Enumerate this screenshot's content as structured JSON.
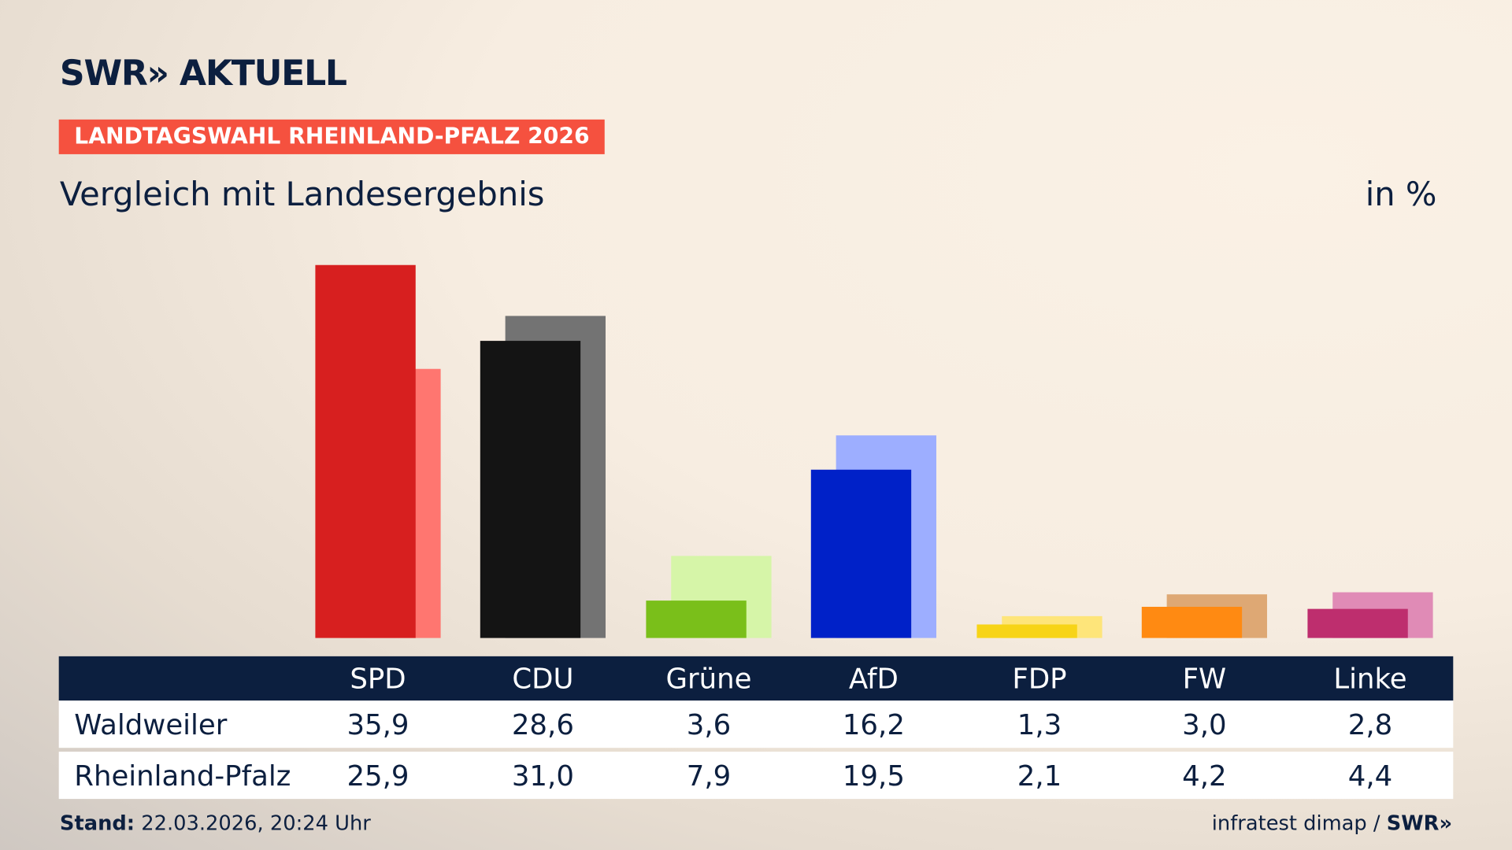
{
  "header": {
    "logo": "SWR» AKTUELL",
    "badge": "LANDTAGSWAHL RHEINLAND-PFALZ 2026",
    "subtitle": "Vergleich mit Landesergebnis",
    "unit": "in %"
  },
  "chart_data": {
    "type": "bar",
    "categories": [
      "SPD",
      "CDU",
      "Grüne",
      "AfD",
      "FDP",
      "FW",
      "Linke"
    ],
    "series": [
      {
        "name": "Waldweiler",
        "values": [
          35.9,
          28.6,
          3.6,
          16.2,
          1.3,
          3.0,
          2.8
        ],
        "labels": [
          "35,9",
          "28,6",
          "3,6",
          "16,2",
          "1,3",
          "3,0",
          "2,8"
        ]
      },
      {
        "name": "Rheinland-Pfalz",
        "values": [
          25.9,
          31.0,
          7.9,
          19.5,
          2.1,
          4.2,
          4.4
        ],
        "labels": [
          "25,9",
          "31,0",
          "7,9",
          "19,5",
          "2,1",
          "4,2",
          "4,4"
        ]
      }
    ],
    "colors": {
      "Waldweiler": [
        "#d71f1f",
        "#141414",
        "#7abf1a",
        "#0021c8",
        "#f7d417",
        "#ff8a12",
        "#be2e6e"
      ],
      "Rheinland-Pfalz": [
        "#ff7670",
        "#737373",
        "#d6f5a8",
        "#9daeff",
        "#fee57a",
        "#dea874",
        "#e08bb6"
      ]
    },
    "ylim": [
      0,
      36
    ]
  },
  "footer": {
    "stand_label": "Stand:",
    "stand_value": "22.03.2026, 20:24 Uhr",
    "source": "infratest dimap / ",
    "source_logo": "SWR»"
  }
}
